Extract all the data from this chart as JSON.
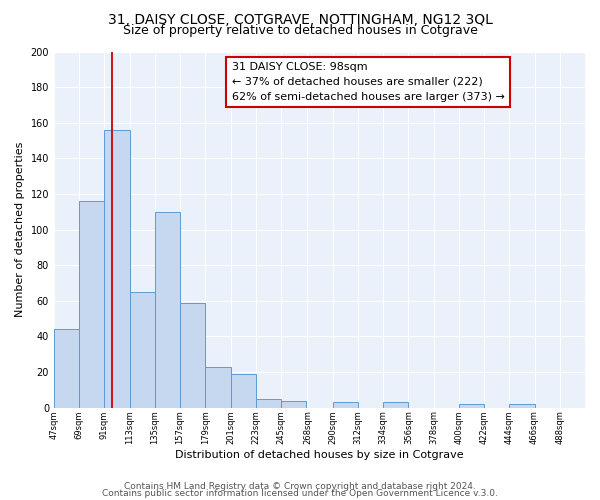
{
  "title": "31, DAISY CLOSE, COTGRAVE, NOTTINGHAM, NG12 3QL",
  "subtitle": "Size of property relative to detached houses in Cotgrave",
  "xlabel": "Distribution of detached houses by size in Cotgrave",
  "ylabel": "Number of detached properties",
  "bar_values": [
    44,
    116,
    156,
    65,
    110,
    59,
    23,
    19,
    5,
    4,
    0,
    3,
    0,
    3,
    0,
    0,
    2,
    0,
    2,
    0
  ],
  "bin_left_edges": [
    47,
    69,
    91,
    113,
    135,
    157,
    179,
    201,
    223,
    245,
    268,
    290,
    312,
    334,
    356,
    378,
    400,
    422,
    444,
    466
  ],
  "tick_labels": [
    "47sqm",
    "69sqm",
    "91sqm",
    "113sqm",
    "135sqm",
    "157sqm",
    "179sqm",
    "201sqm",
    "223sqm",
    "245sqm",
    "268sqm",
    "290sqm",
    "312sqm",
    "334sqm",
    "356sqm",
    "378sqm",
    "400sqm",
    "422sqm",
    "444sqm",
    "466sqm",
    "488sqm"
  ],
  "tick_positions": [
    47,
    69,
    91,
    113,
    135,
    157,
    179,
    201,
    223,
    245,
    268,
    290,
    312,
    334,
    356,
    378,
    400,
    422,
    444,
    466,
    488
  ],
  "bin_width": 22,
  "bar_color": "#c5d8f0",
  "bar_edge_color": "#5b9bd5",
  "vline_x": 98,
  "vline_color": "#cc0000",
  "ylim": [
    0,
    200
  ],
  "yticks": [
    0,
    20,
    40,
    60,
    80,
    100,
    120,
    140,
    160,
    180,
    200
  ],
  "xlim_left": 47,
  "xlim_right": 510,
  "annotation_title": "31 DAISY CLOSE: 98sqm",
  "annotation_line1": "← 37% of detached houses are smaller (222)",
  "annotation_line2": "62% of semi-detached houses are larger (373) →",
  "footer1": "Contains HM Land Registry data © Crown copyright and database right 2024.",
  "footer2": "Contains public sector information licensed under the Open Government Licence v.3.0.",
  "bg_color": "#eaf1fb",
  "bar_color_fill": "#c5d8f0",
  "bar_edge_color_hex": "#5b9bd5",
  "title_fontsize": 10,
  "subtitle_fontsize": 9,
  "annot_fontsize": 8,
  "footer_fontsize": 6.5,
  "ylabel_fontsize": 8,
  "xlabel_fontsize": 8,
  "tick_fontsize": 6
}
